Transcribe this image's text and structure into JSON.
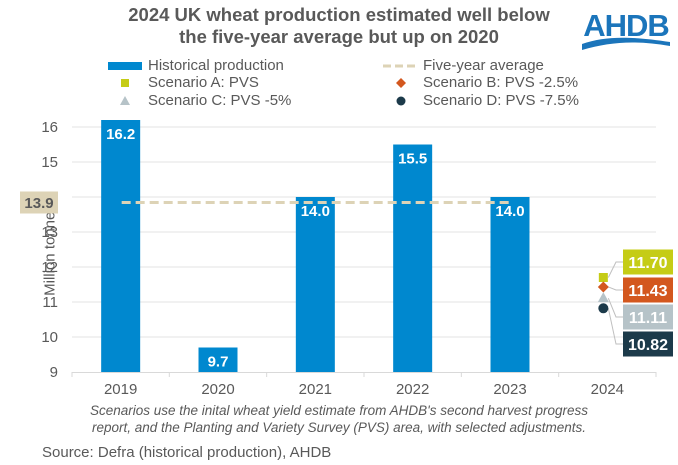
{
  "title": {
    "line1": "2024 UK wheat production estimated well below",
    "line2": "the five-year average but up on 2020"
  },
  "logo": {
    "text": "AHDB",
    "color": "#1b75bb"
  },
  "legend": [
    {
      "label": "Historical production",
      "marker": "bar",
      "color": "#0088cf"
    },
    {
      "label": "Five-year average",
      "marker": "dashed-line",
      "color": "#ddd3b6"
    },
    {
      "label": "Scenario A: PVS",
      "marker": "square",
      "color": "#c5cc16"
    },
    {
      "label": "Scenario B: PVS -2.5%",
      "marker": "diamond",
      "color": "#d3571e"
    },
    {
      "label": "Scenario C: PVS -5%",
      "marker": "triangle",
      "color": "#b6c3c8"
    },
    {
      "label": "Scenario D: PVS -7.5%",
      "marker": "circle",
      "color": "#1c3a4a"
    }
  ],
  "chart_data": {
    "type": "bar",
    "title": "2024 UK wheat production estimated well below the five-year average but up on 2020",
    "xlabel": "",
    "ylabel": "Million tonnes",
    "ylim": [
      9,
      16
    ],
    "yticks": [
      9,
      10,
      11,
      12,
      13,
      14,
      15,
      16
    ],
    "grid": true,
    "categories": [
      "2019",
      "2020",
      "2021",
      "2022",
      "2023",
      "2024"
    ],
    "series": [
      {
        "name": "Historical production",
        "type": "bar",
        "color": "#0088cf",
        "values": [
          16.2,
          9.7,
          14.0,
          15.5,
          14.0,
          null
        ],
        "labels": [
          "16.2",
          "9.7",
          "14.0",
          "15.5",
          "14.0",
          ""
        ]
      },
      {
        "name": "Five-year average",
        "type": "line",
        "style": "dashed",
        "color": "#ddd3b6",
        "value": 13.9,
        "label": "13.9",
        "span": [
          "2019",
          "2023"
        ]
      },
      {
        "name": "Scenario A: PVS",
        "type": "scatter",
        "marker": "square",
        "color": "#c5cc16",
        "category": "2024",
        "value": 11.7,
        "label": "11.70"
      },
      {
        "name": "Scenario B: PVS -2.5%",
        "type": "scatter",
        "marker": "diamond",
        "color": "#d3571e",
        "category": "2024",
        "value": 11.43,
        "label": "11.43"
      },
      {
        "name": "Scenario C: PVS -5%",
        "type": "scatter",
        "marker": "triangle",
        "color": "#b6c3c8",
        "category": "2024",
        "value": 11.11,
        "label": "11.11"
      },
      {
        "name": "Scenario D: PVS -7.5%",
        "type": "scatter",
        "marker": "circle",
        "color": "#1c3a4a",
        "category": "2024",
        "value": 10.82,
        "label": "10.82"
      }
    ],
    "legend_position": "top"
  },
  "note": {
    "line1": "Scenarios use the inital wheat yield estimate from AHDB's second harvest progress",
    "line2": "report, and the Planting and Variety Survey (PVS) area, with selected adjustments."
  },
  "source": "Source: Defra (historical production), AHDB"
}
